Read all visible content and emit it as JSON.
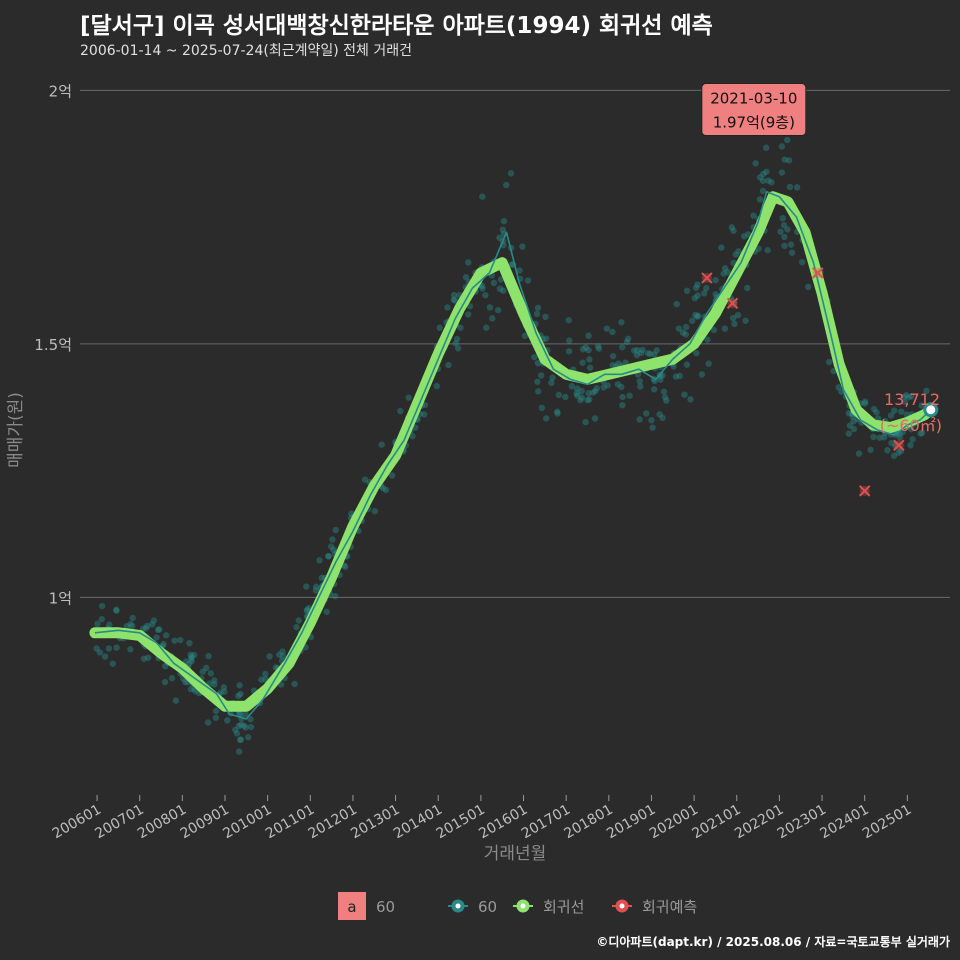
{
  "chart_data": {
    "type": "scatter+line",
    "title": "[달서구] 이곡 성서대백창신한라타운 아파트(1994) 회귀선 예측",
    "subtitle": "2006-01-14 ~ 2025-07-24(최근계약일) 전체 거래건",
    "xlabel": "거래년월",
    "ylabel": "매매가(원)",
    "ylim": [
      0.62,
      2.05
    ],
    "xlim": [
      2005.6,
      2026.0
    ],
    "y_ticks": [
      {
        "v": 1.0,
        "label": "1억"
      },
      {
        "v": 1.5,
        "label": "1.5억"
      },
      {
        "v": 2.0,
        "label": "2억"
      }
    ],
    "x_ticks": [
      {
        "v": 2006,
        "label": "200601"
      },
      {
        "v": 2007,
        "label": "200701"
      },
      {
        "v": 2008,
        "label": "200801"
      },
      {
        "v": 2009,
        "label": "200901"
      },
      {
        "v": 2010,
        "label": "201001"
      },
      {
        "v": 2011,
        "label": "201101"
      },
      {
        "v": 2012,
        "label": "201201"
      },
      {
        "v": 2013,
        "label": "201301"
      },
      {
        "v": 2014,
        "label": "201401"
      },
      {
        "v": 2015,
        "label": "201501"
      },
      {
        "v": 2016,
        "label": "201601"
      },
      {
        "v": 2017,
        "label": "201701"
      },
      {
        "v": 2018,
        "label": "201801"
      },
      {
        "v": 2019,
        "label": "201901"
      },
      {
        "v": 2020,
        "label": "202001"
      },
      {
        "v": 2021,
        "label": "202101"
      },
      {
        "v": 2022,
        "label": "202201"
      },
      {
        "v": 2023,
        "label": "202301"
      },
      {
        "v": 2024,
        "label": "202401"
      },
      {
        "v": 2025,
        "label": "202501"
      }
    ],
    "series": [
      {
        "name": "회귀선",
        "color": "#8ee36c",
        "points": [
          [
            2005.95,
            0.93
          ],
          [
            2006.5,
            0.93
          ],
          [
            2007.0,
            0.925
          ],
          [
            2007.5,
            0.89
          ],
          [
            2008.0,
            0.86
          ],
          [
            2008.5,
            0.82
          ],
          [
            2009.0,
            0.785
          ],
          [
            2009.5,
            0.785
          ],
          [
            2010.0,
            0.82
          ],
          [
            2010.5,
            0.87
          ],
          [
            2011.0,
            0.95
          ],
          [
            2011.5,
            1.04
          ],
          [
            2012.0,
            1.14
          ],
          [
            2012.5,
            1.22
          ],
          [
            2013.0,
            1.28
          ],
          [
            2013.5,
            1.38
          ],
          [
            2014.0,
            1.48
          ],
          [
            2014.5,
            1.57
          ],
          [
            2015.0,
            1.64
          ],
          [
            2015.5,
            1.66
          ],
          [
            2016.0,
            1.56
          ],
          [
            2016.5,
            1.47
          ],
          [
            2017.0,
            1.44
          ],
          [
            2017.5,
            1.43
          ],
          [
            2018.0,
            1.44
          ],
          [
            2018.5,
            1.45
          ],
          [
            2019.0,
            1.46
          ],
          [
            2019.5,
            1.47
          ],
          [
            2020.0,
            1.5
          ],
          [
            2020.5,
            1.56
          ],
          [
            2021.0,
            1.64
          ],
          [
            2021.5,
            1.72
          ],
          [
            2021.85,
            1.79
          ],
          [
            2022.2,
            1.78
          ],
          [
            2022.6,
            1.72
          ],
          [
            2023.0,
            1.6
          ],
          [
            2023.4,
            1.46
          ],
          [
            2023.8,
            1.37
          ],
          [
            2024.2,
            1.34
          ],
          [
            2024.6,
            1.335
          ],
          [
            2025.0,
            1.345
          ],
          [
            2025.4,
            1.36
          ],
          [
            2025.55,
            1.37
          ]
        ]
      },
      {
        "name": "60",
        "color": "#2a8a8a",
        "points": [
          [
            2005.95,
            0.93
          ],
          [
            2006.5,
            0.935
          ],
          [
            2007.0,
            0.93
          ],
          [
            2007.4,
            0.91
          ],
          [
            2007.8,
            0.87
          ],
          [
            2008.3,
            0.84
          ],
          [
            2008.8,
            0.81
          ],
          [
            2009.1,
            0.77
          ],
          [
            2009.5,
            0.76
          ],
          [
            2009.9,
            0.8
          ],
          [
            2010.4,
            0.87
          ],
          [
            2010.8,
            0.93
          ],
          [
            2011.2,
            1.0
          ],
          [
            2011.6,
            1.07
          ],
          [
            2012.0,
            1.13
          ],
          [
            2012.4,
            1.2
          ],
          [
            2012.8,
            1.26
          ],
          [
            2013.2,
            1.31
          ],
          [
            2013.6,
            1.39
          ],
          [
            2014.0,
            1.47
          ],
          [
            2014.4,
            1.55
          ],
          [
            2014.8,
            1.61
          ],
          [
            2015.2,
            1.64
          ],
          [
            2015.6,
            1.72
          ],
          [
            2015.9,
            1.62
          ],
          [
            2016.3,
            1.52
          ],
          [
            2016.7,
            1.45
          ],
          [
            2017.1,
            1.43
          ],
          [
            2017.5,
            1.42
          ],
          [
            2017.9,
            1.44
          ],
          [
            2018.3,
            1.44
          ],
          [
            2018.7,
            1.45
          ],
          [
            2019.1,
            1.43
          ],
          [
            2019.5,
            1.47
          ],
          [
            2019.9,
            1.5
          ],
          [
            2020.3,
            1.56
          ],
          [
            2020.7,
            1.61
          ],
          [
            2021.1,
            1.66
          ],
          [
            2021.5,
            1.74
          ],
          [
            2021.7,
            1.8
          ],
          [
            2022.0,
            1.79
          ],
          [
            2022.4,
            1.75
          ],
          [
            2022.8,
            1.66
          ],
          [
            2023.2,
            1.52
          ],
          [
            2023.5,
            1.41
          ],
          [
            2023.9,
            1.35
          ],
          [
            2024.3,
            1.33
          ],
          [
            2024.7,
            1.32
          ],
          [
            2025.0,
            1.34
          ],
          [
            2025.3,
            1.35
          ],
          [
            2025.55,
            1.37
          ]
        ]
      }
    ],
    "predictions": [
      [
        2020.3,
        1.63
      ],
      [
        2020.9,
        1.58
      ],
      [
        2022.9,
        1.64
      ],
      [
        2024.0,
        1.21
      ],
      [
        2024.8,
        1.3
      ]
    ],
    "scatter_note": "individual 60㎡ transactions scattered around the 60 line",
    "highlight": {
      "date": "2021-03-10",
      "price": "1.97억(9층)",
      "x": 2021.4,
      "y": 1.97
    },
    "last_point": {
      "x": 2025.55,
      "y": 1.37,
      "label_value": "13,712",
      "label_area": "(~60㎡)"
    },
    "legend": {
      "fill_key": "a",
      "fill_label": "60",
      "items": [
        {
          "name": "60",
          "color": "#2a8a8a"
        },
        {
          "name": "회귀선",
          "color": "#8ee36c"
        },
        {
          "name": "회귀예측",
          "color": "#e0504e"
        }
      ]
    }
  },
  "caption": "©디아파트(dapt.kr) / 2025.08.06 / 자료=국토교통부 실거래가"
}
